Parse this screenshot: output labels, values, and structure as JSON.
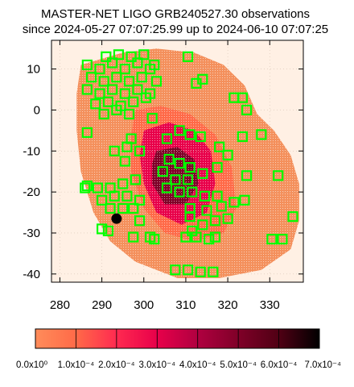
{
  "chart_data": {
    "type": "scatter",
    "title": "MASTER-NET LIGO GRB240527.30 observations",
    "subtitle": "since 2024-05-27 07:07:25.99 up to 2024-06-10 07:07:25",
    "xlim": [
      278,
      338
    ],
    "ylim": [
      -42,
      17
    ],
    "x_ticks": [
      280,
      290,
      300,
      310,
      320,
      330
    ],
    "y_ticks": [
      10,
      0,
      -10,
      -20,
      -30,
      -40
    ],
    "grid": true,
    "colorbar": {
      "min": 0,
      "max": 0.0007,
      "labels": [
        "0.0x10⁰",
        "1.0x10⁻⁴",
        "2.0x10⁻⁴",
        "3.0x10⁻⁴",
        "4.0x10⁻⁴",
        "5.0x10⁻⁴",
        "6.0x10⁻⁴",
        "7.0x10⁻⁴"
      ],
      "colors": [
        "#ff8c5a",
        "#ff6a48",
        "#ff2a50",
        "#e8004a",
        "#b00040",
        "#800028",
        "#500014",
        "#000000"
      ]
    },
    "colors": {
      "background_region": "#fff0e4",
      "probability_region": "#f4905c",
      "field_box": "#00ff00",
      "marker": "#000000"
    },
    "marker_point": {
      "x": 293.5,
      "y": -26.5
    },
    "probability_region": [
      [
        285,
        11
      ],
      [
        295,
        14
      ],
      [
        303,
        15
      ],
      [
        312,
        14
      ],
      [
        319,
        11
      ],
      [
        324,
        6
      ],
      [
        327,
        -1
      ],
      [
        331,
        -5
      ],
      [
        335,
        -11
      ],
      [
        337,
        -18
      ],
      [
        337,
        -27
      ],
      [
        335,
        -34
      ],
      [
        328,
        -39
      ],
      [
        318,
        -41
      ],
      [
        308,
        -41
      ],
      [
        298,
        -37
      ],
      [
        292,
        -32
      ],
      [
        288,
        -25
      ],
      [
        285,
        -15
      ],
      [
        284,
        -5
      ],
      [
        284,
        4
      ]
    ],
    "core_regions": [
      {
        "level": 0.0001,
        "points": [
          [
            298,
            0
          ],
          [
            304,
            1
          ],
          [
            311,
            -1
          ],
          [
            317,
            -6
          ],
          [
            321,
            -14
          ],
          [
            322,
            -24
          ],
          [
            319,
            -30
          ],
          [
            312,
            -32
          ],
          [
            305,
            -30
          ],
          [
            300,
            -24
          ],
          [
            297,
            -15
          ],
          [
            297,
            -6
          ]
        ]
      },
      {
        "level": 0.0003,
        "points": [
          [
            300,
            -5
          ],
          [
            306,
            -3
          ],
          [
            312,
            -5
          ],
          [
            316,
            -10
          ],
          [
            317,
            -18
          ],
          [
            315,
            -25
          ],
          [
            309,
            -28
          ],
          [
            303,
            -25
          ],
          [
            300,
            -18
          ],
          [
            299,
            -11
          ]
        ]
      },
      {
        "level": 0.0005,
        "points": [
          [
            303,
            -10
          ],
          [
            308,
            -9
          ],
          [
            312,
            -12
          ],
          [
            313,
            -18
          ],
          [
            310,
            -23
          ],
          [
            305,
            -23
          ],
          [
            302,
            -18
          ],
          [
            302,
            -13
          ]
        ]
      }
    ],
    "fields": [
      {
        "x": 286.5,
        "y": 11
      },
      {
        "x": 289.5,
        "y": 10
      },
      {
        "x": 292.5,
        "y": 11.5
      },
      {
        "x": 295.5,
        "y": 10
      },
      {
        "x": 298.5,
        "y": 11.5
      },
      {
        "x": 301.5,
        "y": 10
      },
      {
        "x": 287.5,
        "y": 8
      },
      {
        "x": 290.5,
        "y": 7
      },
      {
        "x": 293.5,
        "y": 8
      },
      {
        "x": 296.5,
        "y": 7
      },
      {
        "x": 299.5,
        "y": 8
      },
      {
        "x": 286.5,
        "y": 5
      },
      {
        "x": 289.5,
        "y": 4
      },
      {
        "x": 292.5,
        "y": 5
      },
      {
        "x": 295.5,
        "y": 4
      },
      {
        "x": 298.5,
        "y": 5
      },
      {
        "x": 301.5,
        "y": 4
      },
      {
        "x": 288.5,
        "y": 1.5
      },
      {
        "x": 291.5,
        "y": 2
      },
      {
        "x": 294.5,
        "y": 1
      },
      {
        "x": 297.5,
        "y": 2
      },
      {
        "x": 300.5,
        "y": 3
      },
      {
        "x": 290.5,
        "y": -1
      },
      {
        "x": 293.5,
        "y": 0
      },
      {
        "x": 296.5,
        "y": -1
      },
      {
        "x": 291,
        "y": 13
      },
      {
        "x": 294,
        "y": 13.5
      },
      {
        "x": 297,
        "y": 13
      },
      {
        "x": 300,
        "y": 13.5
      },
      {
        "x": 303,
        "y": 7
      },
      {
        "x": 302.5,
        "y": 11
      },
      {
        "x": 310.5,
        "y": 13
      },
      {
        "x": 314,
        "y": 7.5
      },
      {
        "x": 312.5,
        "y": 6.5
      },
      {
        "x": 321.5,
        "y": 3
      },
      {
        "x": 323.5,
        "y": 3
      },
      {
        "x": 324.5,
        "y": 0
      },
      {
        "x": 302,
        "y": -2
      },
      {
        "x": 286.5,
        "y": -5.5
      },
      {
        "x": 297,
        "y": -7
      },
      {
        "x": 305.5,
        "y": -7
      },
      {
        "x": 308.5,
        "y": -5
      },
      {
        "x": 311,
        "y": -6
      },
      {
        "x": 313.5,
        "y": -6.5
      },
      {
        "x": 318,
        "y": -9
      },
      {
        "x": 320,
        "y": -11
      },
      {
        "x": 323.5,
        "y": -6.5
      },
      {
        "x": 328,
        "y": -6
      },
      {
        "x": 293,
        "y": -10
      },
      {
        "x": 296,
        "y": -9
      },
      {
        "x": 299,
        "y": -10
      },
      {
        "x": 295.5,
        "y": -12.5
      },
      {
        "x": 306,
        "y": -12
      },
      {
        "x": 308.5,
        "y": -13
      },
      {
        "x": 311,
        "y": -14
      },
      {
        "x": 314,
        "y": -15.5
      },
      {
        "x": 317.5,
        "y": -14
      },
      {
        "x": 304.5,
        "y": -15
      },
      {
        "x": 307.5,
        "y": -17
      },
      {
        "x": 310.5,
        "y": -17
      },
      {
        "x": 305.5,
        "y": -19
      },
      {
        "x": 308.5,
        "y": -20
      },
      {
        "x": 311.5,
        "y": -20
      },
      {
        "x": 314.5,
        "y": -21
      },
      {
        "x": 317.5,
        "y": -21
      },
      {
        "x": 324.5,
        "y": -16
      },
      {
        "x": 332,
        "y": -16
      },
      {
        "x": 286,
        "y": -19
      },
      {
        "x": 286.5,
        "y": -18.5
      },
      {
        "x": 289,
        "y": -19
      },
      {
        "x": 292,
        "y": -19
      },
      {
        "x": 295,
        "y": -18
      },
      {
        "x": 298,
        "y": -17
      },
      {
        "x": 290,
        "y": -22
      },
      {
        "x": 293,
        "y": -21
      },
      {
        "x": 296,
        "y": -21
      },
      {
        "x": 299,
        "y": -22
      },
      {
        "x": 292,
        "y": -24
      },
      {
        "x": 295,
        "y": -24
      },
      {
        "x": 297.5,
        "y": -24
      },
      {
        "x": 311,
        "y": -24
      },
      {
        "x": 315,
        "y": -24.5
      },
      {
        "x": 318.5,
        "y": -23.5
      },
      {
        "x": 321.5,
        "y": -22.5
      },
      {
        "x": 324,
        "y": -22
      },
      {
        "x": 311,
        "y": -26
      },
      {
        "x": 314,
        "y": -28
      },
      {
        "x": 317,
        "y": -27
      },
      {
        "x": 320,
        "y": -26.5
      },
      {
        "x": 311.5,
        "y": -29.5
      },
      {
        "x": 299,
        "y": -27
      },
      {
        "x": 290,
        "y": -29
      },
      {
        "x": 291.5,
        "y": -29.5
      },
      {
        "x": 297.5,
        "y": -31
      },
      {
        "x": 301.5,
        "y": -31
      },
      {
        "x": 302.5,
        "y": -31.5
      },
      {
        "x": 310,
        "y": -31
      },
      {
        "x": 312.5,
        "y": -31
      },
      {
        "x": 315.5,
        "y": -31.5
      },
      {
        "x": 317,
        "y": -31
      },
      {
        "x": 330.5,
        "y": -31.5
      },
      {
        "x": 333,
        "y": -31.5
      },
      {
        "x": 335.5,
        "y": -26
      },
      {
        "x": 307.5,
        "y": -39
      },
      {
        "x": 310.5,
        "y": -39
      },
      {
        "x": 313.5,
        "y": -39.5
      },
      {
        "x": 316.5,
        "y": -39.5
      }
    ]
  }
}
